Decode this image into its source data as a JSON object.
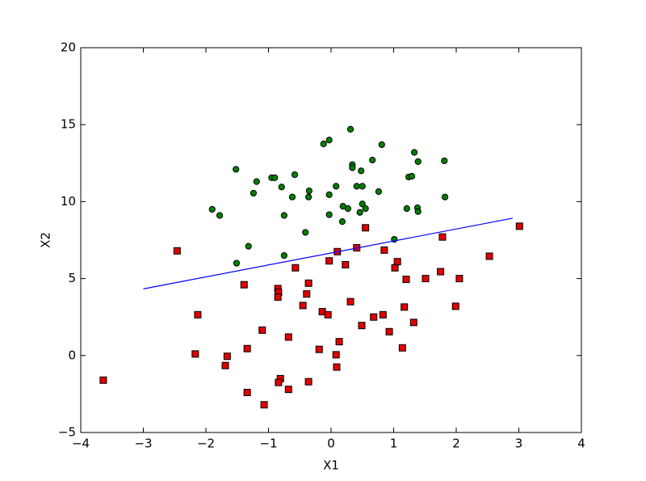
{
  "chart_data": {
    "type": "scatter",
    "xlabel": "X1",
    "ylabel": "X2",
    "xlim": [
      -4,
      4
    ],
    "ylim": [
      -5,
      20
    ],
    "xticks": [
      {
        "value": -4,
        "label": "−4"
      },
      {
        "value": -3,
        "label": "−3"
      },
      {
        "value": -2,
        "label": "−2"
      },
      {
        "value": -1,
        "label": "−1"
      },
      0,
      1,
      2,
      3,
      4
    ],
    "yticks": [
      {
        "value": -5,
        "label": "−5"
      },
      0,
      5,
      10,
      15,
      20
    ],
    "series": [
      {
        "marker": "circle",
        "color": "#008000",
        "x": [
          0.31,
          -0.03,
          -0.12,
          0.81,
          1.33,
          0.34,
          0.34,
          0.66,
          0.48,
          1.81,
          1.39,
          -1.52,
          -0.58,
          1.24,
          1.29,
          -0.95,
          -0.9,
          -1.19,
          0.08,
          0.41,
          0.5,
          -0.79,
          -0.35,
          -1.24,
          0.76,
          -0.03,
          -0.36,
          -0.62,
          1.82,
          0.5,
          0.19,
          0.27,
          0.55,
          1.21,
          1.38,
          1.39,
          -1.9,
          0.46,
          -1.78,
          -0.75,
          -0.03,
          0.18,
          -0.41,
          1.01,
          -1.32,
          -0.75,
          -1.51
        ],
        "values": [
          14.7,
          14.0,
          13.75,
          13.7,
          13.2,
          12.4,
          12.2,
          12.7,
          12.0,
          12.65,
          12.6,
          12.1,
          11.75,
          11.6,
          11.65,
          11.55,
          11.55,
          11.3,
          11.0,
          11.0,
          11.0,
          10.95,
          10.7,
          10.55,
          10.65,
          10.45,
          10.3,
          10.3,
          10.3,
          9.85,
          9.7,
          9.55,
          9.55,
          9.55,
          9.6,
          9.35,
          9.5,
          9.3,
          9.1,
          9.1,
          9.15,
          8.7,
          8.0,
          7.55,
          7.1,
          6.5,
          6.0
        ]
      },
      {
        "marker": "square",
        "color": "#e00000",
        "x": [
          3.01,
          -2.46,
          0.55,
          0.41,
          0.1,
          0.85,
          1.78,
          2.53,
          -0.03,
          0.23,
          1.06,
          1.02,
          -0.57,
          1.75,
          1.2,
          1.51,
          2.05,
          -1.39,
          -0.36,
          -0.85,
          -0.39,
          -0.84,
          -0.85,
          0.31,
          -0.45,
          1.99,
          1.17,
          -0.14,
          -0.05,
          -2.13,
          0.83,
          0.68,
          1.32,
          0.49,
          0.93,
          -1.1,
          -0.68,
          0.13,
          -0.19,
          -1.34,
          1.14,
          -2.17,
          -1.66,
          0.08,
          -1.69,
          0.09,
          -3.64,
          -0.81,
          -0.84,
          -0.36,
          -0.68,
          -1.34,
          -1.07
        ],
        "values": [
          8.4,
          6.8,
          8.3,
          7.0,
          6.75,
          6.85,
          7.7,
          6.45,
          6.15,
          5.9,
          6.1,
          5.7,
          5.7,
          5.45,
          4.95,
          5.0,
          5.0,
          4.6,
          4.7,
          4.35,
          4.0,
          4.1,
          3.8,
          3.5,
          3.25,
          3.2,
          3.15,
          2.85,
          2.65,
          2.65,
          2.65,
          2.5,
          2.15,
          1.95,
          1.55,
          1.65,
          1.2,
          0.9,
          0.4,
          0.45,
          0.5,
          0.1,
          -0.05,
          0.05,
          -0.65,
          -0.75,
          -1.6,
          -1.5,
          -1.75,
          -1.7,
          -2.2,
          -2.4,
          -3.2
        ]
      },
      {
        "marker": "line",
        "color": "#0000ff",
        "x": [
          -3.0,
          2.9
        ],
        "values": [
          4.33,
          8.92
        ]
      }
    ]
  }
}
